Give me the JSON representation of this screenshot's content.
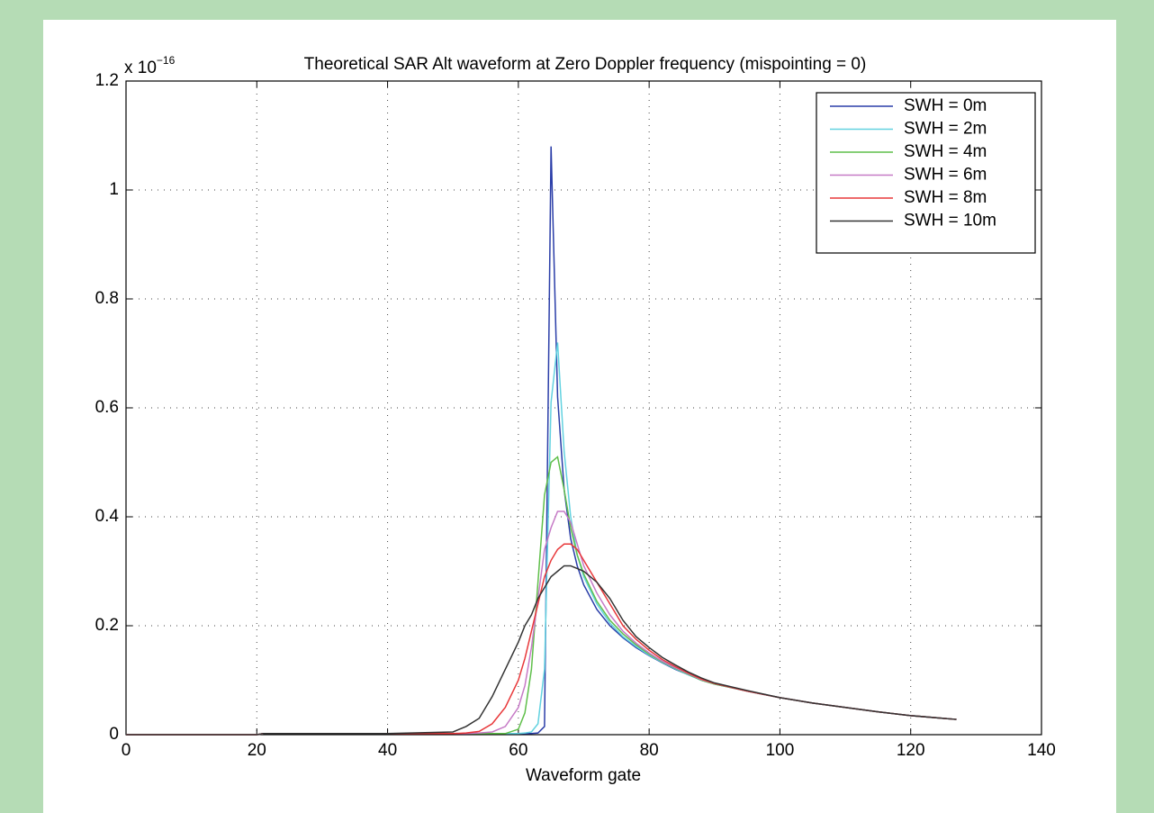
{
  "chart_data": {
    "type": "line",
    "title": "Theoretical SAR Alt waveform at Zero Doppler frequency (mispointing = 0)",
    "x_label": "Waveform gate",
    "y_multiplier": "x 10",
    "y_multiplier_exponent": "−16",
    "x": [
      0,
      20,
      21,
      30,
      40,
      50,
      52,
      54,
      56,
      58,
      60,
      61,
      62,
      63,
      64,
      65,
      66,
      67,
      68,
      69,
      70,
      72,
      74,
      76,
      78,
      80,
      82,
      84,
      86,
      88,
      90,
      95,
      100,
      105,
      110,
      115,
      120,
      125,
      127
    ],
    "series": [
      {
        "name": "SWH = 0m",
        "color": "#2a3da8",
        "values": [
          0,
          0,
          0.002,
          0.002,
          0.002,
          0.002,
          0.002,
          0.002,
          0.002,
          0.002,
          0.002,
          0.002,
          0.002,
          0.003,
          0.015,
          1.08,
          0.62,
          0.45,
          0.36,
          0.31,
          0.275,
          0.23,
          0.2,
          0.178,
          0.16,
          0.145,
          0.132,
          0.12,
          0.11,
          0.1,
          0.093,
          0.08,
          0.068,
          0.058,
          0.05,
          0.042,
          0.035,
          0.03,
          0.028
        ]
      },
      {
        "name": "SWH = 2m",
        "color": "#63d2e0",
        "values": [
          0,
          0,
          0.002,
          0.002,
          0.002,
          0.002,
          0.002,
          0.002,
          0.002,
          0.002,
          0.002,
          0.003,
          0.005,
          0.02,
          0.12,
          0.61,
          0.72,
          0.52,
          0.4,
          0.33,
          0.29,
          0.24,
          0.205,
          0.18,
          0.162,
          0.146,
          0.133,
          0.121,
          0.11,
          0.1,
          0.093,
          0.08,
          0.068,
          0.058,
          0.05,
          0.042,
          0.035,
          0.03,
          0.028
        ]
      },
      {
        "name": "SWH = 4m",
        "color": "#5fbf4a",
        "values": [
          0,
          0,
          0.002,
          0.002,
          0.002,
          0.002,
          0.002,
          0.002,
          0.002,
          0.002,
          0.01,
          0.04,
          0.12,
          0.28,
          0.44,
          0.5,
          0.51,
          0.45,
          0.38,
          0.33,
          0.295,
          0.245,
          0.21,
          0.185,
          0.165,
          0.148,
          0.134,
          0.122,
          0.111,
          0.1,
          0.093,
          0.08,
          0.068,
          0.058,
          0.05,
          0.042,
          0.035,
          0.03,
          0.028
        ]
      },
      {
        "name": "SWH = 6m",
        "color": "#c67ac6",
        "values": [
          0,
          0,
          0.002,
          0.002,
          0.002,
          0.002,
          0.002,
          0.003,
          0.005,
          0.015,
          0.05,
          0.09,
          0.16,
          0.25,
          0.34,
          0.38,
          0.41,
          0.41,
          0.39,
          0.35,
          0.31,
          0.26,
          0.22,
          0.19,
          0.168,
          0.15,
          0.135,
          0.123,
          0.112,
          0.101,
          0.094,
          0.08,
          0.068,
          0.058,
          0.05,
          0.042,
          0.035,
          0.03,
          0.028
        ]
      },
      {
        "name": "SWH = 8m",
        "color": "#e8383a",
        "values": [
          0,
          0,
          0.002,
          0.002,
          0.002,
          0.002,
          0.003,
          0.006,
          0.02,
          0.05,
          0.1,
          0.14,
          0.19,
          0.24,
          0.29,
          0.32,
          0.34,
          0.35,
          0.35,
          0.34,
          0.32,
          0.28,
          0.24,
          0.2,
          0.175,
          0.155,
          0.138,
          0.125,
          0.113,
          0.102,
          0.094,
          0.08,
          0.068,
          0.058,
          0.05,
          0.042,
          0.035,
          0.03,
          0.028
        ]
      },
      {
        "name": "SWH = 10m",
        "color": "#333333",
        "values": [
          0,
          0,
          0.002,
          0.002,
          0.002,
          0.005,
          0.015,
          0.03,
          0.07,
          0.12,
          0.17,
          0.2,
          0.22,
          0.25,
          0.27,
          0.29,
          0.3,
          0.31,
          0.31,
          0.305,
          0.3,
          0.28,
          0.25,
          0.21,
          0.18,
          0.16,
          0.142,
          0.128,
          0.115,
          0.104,
          0.095,
          0.081,
          0.068,
          0.058,
          0.05,
          0.042,
          0.035,
          0.03,
          0.028
        ]
      }
    ],
    "xlim": [
      0,
      140
    ],
    "xticks": [
      0,
      20,
      40,
      60,
      80,
      100,
      120,
      140
    ],
    "ylim": [
      0,
      1.2
    ],
    "yticks": [
      0,
      0.2,
      0.4,
      0.6,
      0.8,
      1,
      1.2
    ],
    "grid": true,
    "legend": "top-right"
  }
}
